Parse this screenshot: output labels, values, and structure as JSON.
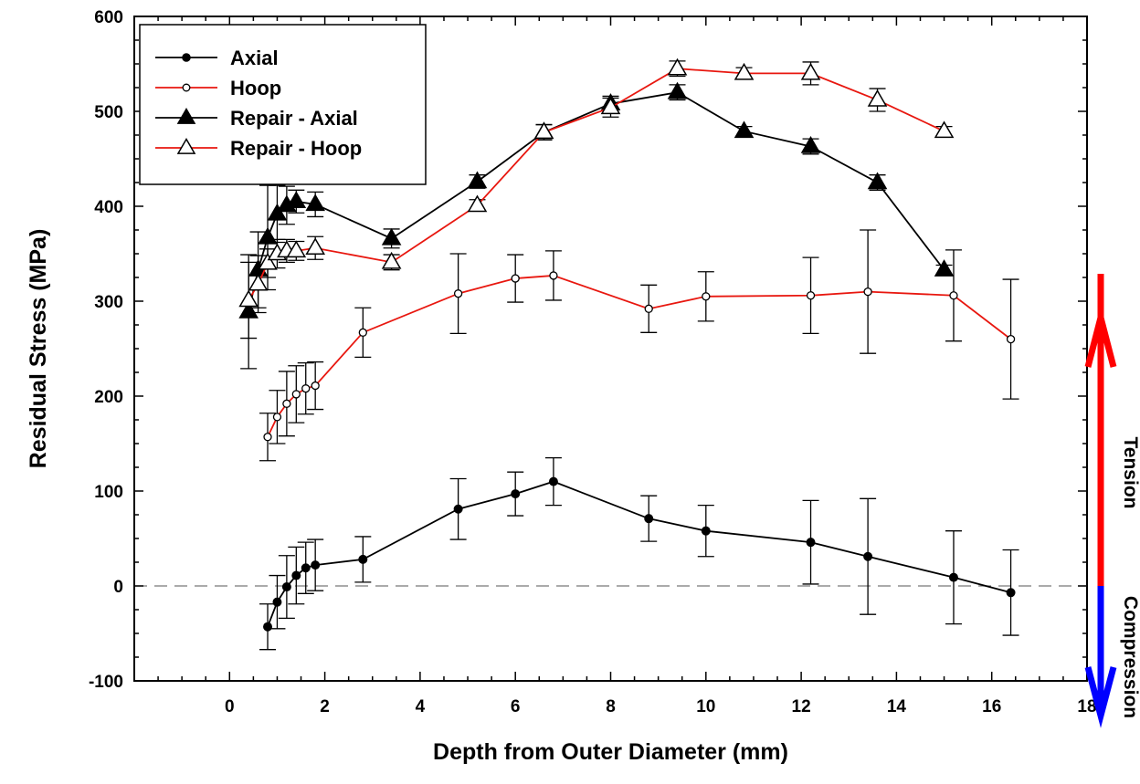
{
  "chart_data": {
    "type": "line",
    "title": "",
    "xlabel": "Depth from Outer Diameter (mm)",
    "ylabel": "Residual Stress (MPa)",
    "xlim": [
      -2,
      18
    ],
    "ylim": [
      -100,
      600
    ],
    "xticks": [
      0,
      2,
      4,
      6,
      8,
      10,
      12,
      14,
      16,
      18
    ],
    "yticks": [
      -100,
      0,
      100,
      200,
      300,
      400,
      500,
      600
    ],
    "grid": false,
    "legend_position": "top-left",
    "zero_line": true,
    "annotations": {
      "tension": "Tension",
      "compression": "Compression"
    },
    "series": [
      {
        "name": "Axial",
        "color": "#000000",
        "marker": "filled-circle",
        "x": [
          0.8,
          1.0,
          1.2,
          1.4,
          1.6,
          1.8,
          2.8,
          4.8,
          6.0,
          6.8,
          8.8,
          10.0,
          12.2,
          13.4,
          15.2,
          16.4
        ],
        "y": [
          -43,
          -17,
          -1,
          11,
          19,
          22,
          28,
          81,
          97,
          110,
          71,
          58,
          46,
          31,
          9,
          -7
        ],
        "err": [
          24,
          28,
          33,
          30,
          27,
          27,
          24,
          32,
          23,
          25,
          24,
          27,
          44,
          61,
          49,
          45
        ]
      },
      {
        "name": "Hoop",
        "color": "#e8170f",
        "marker": "open-circle",
        "x": [
          0.8,
          1.0,
          1.2,
          1.4,
          1.6,
          1.8,
          2.8,
          4.8,
          6.0,
          6.8,
          8.8,
          10.0,
          12.2,
          13.4,
          15.2,
          16.4
        ],
        "y": [
          157,
          178,
          192,
          202,
          208,
          211,
          267,
          308,
          324,
          327,
          292,
          305,
          306,
          310,
          306,
          260
        ],
        "err": [
          25,
          28,
          34,
          30,
          27,
          25,
          26,
          42,
          25,
          26,
          25,
          26,
          40,
          65,
          48,
          63
        ]
      },
      {
        "name": "Repair - Axial",
        "color": "#000000",
        "marker": "filled-triangle",
        "x": [
          0.4,
          0.6,
          0.8,
          1.0,
          1.2,
          1.4,
          1.8,
          3.4,
          5.2,
          6.6,
          8.0,
          9.4,
          10.8,
          12.2,
          13.6,
          15.0
        ],
        "y": [
          289,
          333,
          367,
          392,
          401,
          405,
          402,
          366,
          426,
          478,
          508,
          520,
          479,
          463,
          425,
          333
        ],
        "err": [
          60,
          40,
          55,
          30,
          20,
          12,
          13,
          10,
          7,
          8,
          8,
          8,
          5,
          8,
          8,
          5
        ]
      },
      {
        "name": "Repair - Hoop",
        "color": "#e8170f",
        "marker": "open-triangle",
        "x": [
          0.4,
          0.6,
          0.8,
          1.0,
          1.2,
          1.4,
          1.8,
          3.4,
          5.2,
          6.6,
          8.0,
          9.4,
          10.8,
          12.2,
          13.6,
          15.0
        ],
        "y": [
          301,
          318,
          340,
          350,
          353,
          353,
          356,
          341,
          401,
          478,
          504,
          545,
          540,
          540,
          512,
          479
        ],
        "err": [
          40,
          30,
          15,
          15,
          12,
          10,
          12,
          8,
          6,
          8,
          10,
          8,
          6,
          12,
          12,
          5
        ]
      }
    ]
  }
}
